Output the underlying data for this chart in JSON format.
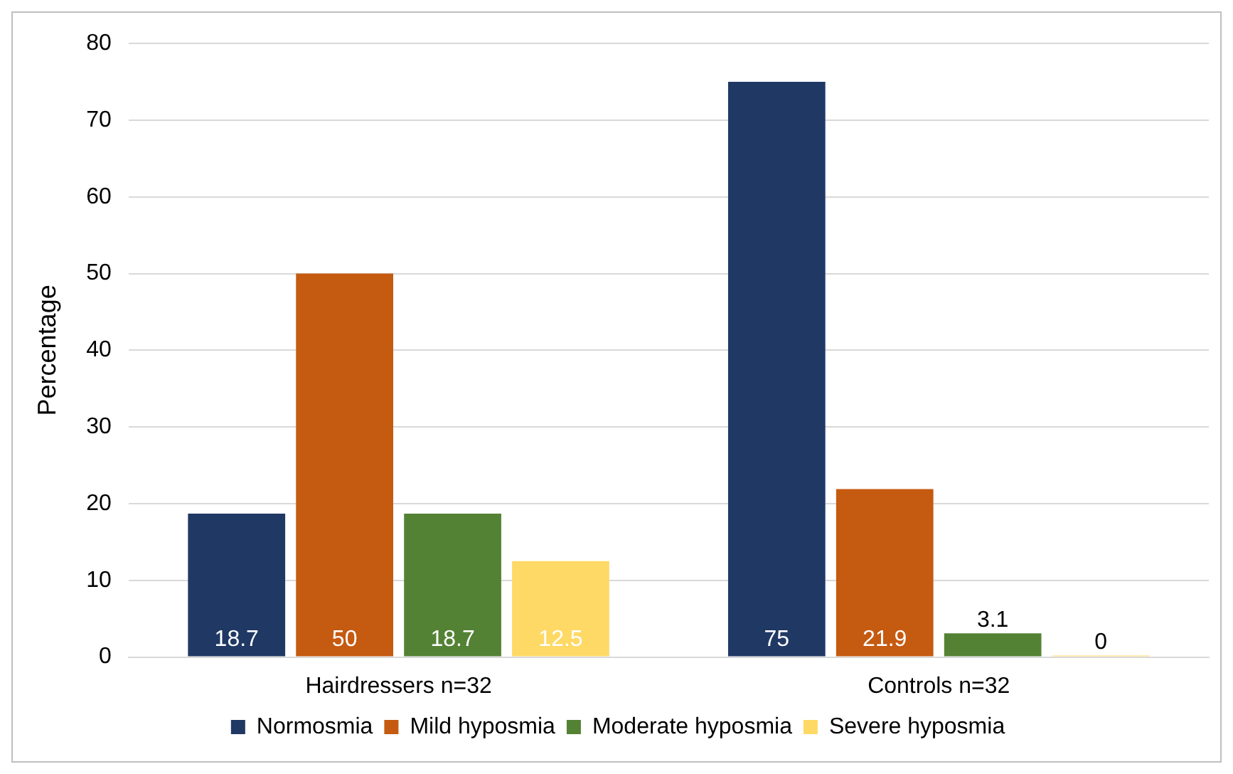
{
  "chart_data": {
    "type": "bar",
    "ylabel": "Percentage",
    "categories": [
      "Hairdressers n=32",
      "Controls n=32"
    ],
    "series": [
      {
        "name": "Normosmia",
        "color": "#203864",
        "values": [
          18.7,
          75
        ]
      },
      {
        "name": "Mild hyposmia",
        "color": "#c55a11",
        "values": [
          50,
          21.9
        ]
      },
      {
        "name": "Moderate hyposmia",
        "color": "#548235",
        "values": [
          18.7,
          3.1
        ]
      },
      {
        "name": "Severe hyposmia",
        "color": "#ffd966",
        "values": [
          12.5,
          0
        ]
      }
    ],
    "ylim": [
      0,
      80
    ],
    "yticks": [
      0,
      10,
      20,
      30,
      40,
      50,
      60,
      70,
      80
    ],
    "grid": "y",
    "legend": "bottom",
    "data_labels": true
  }
}
